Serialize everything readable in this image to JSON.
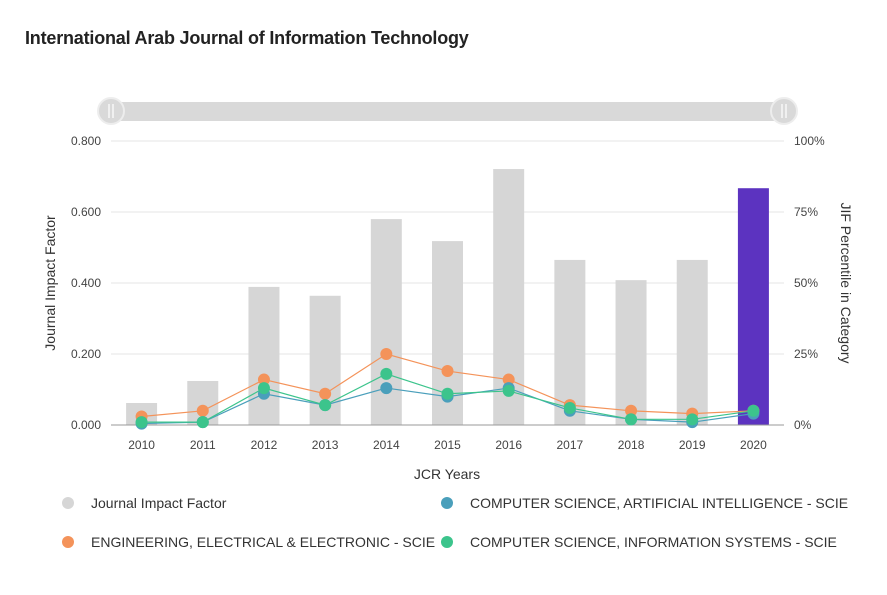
{
  "title": "International Arab Journal of Information Technology",
  "range_slider": {
    "start_handle": "range-start",
    "end_handle": "range-end"
  },
  "chart_data": {
    "type": "bar",
    "title": "International Arab Journal of Information Technology",
    "xlabel": "JCR Years",
    "ylabel": "Journal Impact Factor",
    "y2label": "JIF Percentile in Category",
    "categories": [
      "2010",
      "2011",
      "2012",
      "2013",
      "2014",
      "2015",
      "2016",
      "2017",
      "2018",
      "2019",
      "2020"
    ],
    "ylim": [
      0,
      0.8
    ],
    "y2lim": [
      0,
      100
    ],
    "yticks": [
      "0.000",
      "0.200",
      "0.400",
      "0.600",
      "0.800"
    ],
    "y2ticks": [
      "0%",
      "25%",
      "50%",
      "75%",
      "100%"
    ],
    "grid": true,
    "legend_position": "bottom",
    "highlight_category": "2020",
    "colors": {
      "bar": "#d6d6d6",
      "highlight": "#5c33c0",
      "grid": "#e6e6e6",
      "axis": "#999999"
    },
    "series": [
      {
        "name": "Journal Impact Factor",
        "type": "bar",
        "axis": "left",
        "color": "#d6d6d6",
        "values": [
          0.062,
          0.124,
          0.389,
          0.364,
          0.58,
          0.518,
          0.721,
          0.465,
          0.408,
          0.465,
          0.667
        ]
      },
      {
        "name": "ENGINEERING, ELECTRICAL & ELECTRONIC - SCIE",
        "type": "line",
        "axis": "right",
        "color": "#f4935a",
        "values": [
          3,
          5,
          16,
          11,
          25,
          19,
          16,
          7,
          5,
          4,
          5
        ]
      },
      {
        "name": "COMPUTER SCIENCE, ARTIFICIAL INTELLIGENCE - SCIE",
        "type": "line",
        "axis": "right",
        "color": "#4a9fbb",
        "values": [
          0.5,
          1,
          11,
          7,
          13,
          10,
          13,
          5,
          2,
          1,
          4
        ]
      },
      {
        "name": "COMPUTER SCIENCE, INFORMATION SYSTEMS - SCIE",
        "type": "line",
        "axis": "right",
        "color": "#3cc48c",
        "values": [
          1,
          1,
          13,
          7,
          18,
          11,
          12,
          6,
          2,
          2,
          5
        ]
      }
    ]
  },
  "legend": [
    {
      "label": "Journal Impact Factor",
      "color": "#d6d6d6"
    },
    {
      "label": "COMPUTER SCIENCE, ARTIFICIAL INTELLIGENCE - SCIE",
      "color": "#4a9fbb"
    },
    {
      "label": "ENGINEERING, ELECTRICAL & ELECTRONIC - SCIE",
      "color": "#f4935a"
    },
    {
      "label": "COMPUTER SCIENCE, INFORMATION SYSTEMS - SCIE",
      "color": "#3cc48c"
    }
  ]
}
